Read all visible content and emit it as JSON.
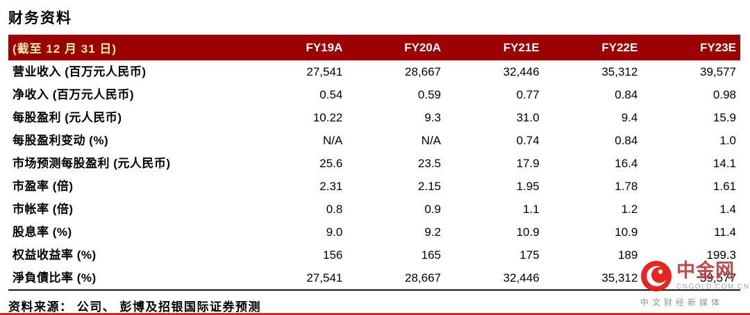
{
  "page_title": "财务资料",
  "table": {
    "header": {
      "label": "(截至 12 月 31 日)",
      "columns": [
        "FY19A",
        "FY20A",
        "FY21E",
        "FY22E",
        "FY23E"
      ]
    },
    "rows": [
      {
        "label": "营业收入 (百万元人民币)",
        "values": [
          "27,541",
          "28,667",
          "32,446",
          "35,312",
          "39,577"
        ]
      },
      {
        "label": "净收入 (百万元人民币)",
        "values": [
          "0.54",
          "0.59",
          "0.77",
          "0.84",
          "0.98"
        ]
      },
      {
        "label": "每股盈利 (元人民币)",
        "values": [
          "10.22",
          "9.3",
          "31.0",
          "9.4",
          "15.9"
        ]
      },
      {
        "label": "每股盈利变动 (%)",
        "values": [
          "N/A",
          "N/A",
          "0.74",
          "0.84",
          "1.0"
        ]
      },
      {
        "label": "市场预测每股盈利 (元人民币)",
        "values": [
          "25.6",
          "23.5",
          "17.9",
          "16.4",
          "14.1"
        ]
      },
      {
        "label": "市盈率 (倍)",
        "values": [
          "2.31",
          "2.15",
          "1.95",
          "1.78",
          "1.61"
        ]
      },
      {
        "label": "市帐率 (倍)",
        "values": [
          "0.8",
          "0.9",
          "1.1",
          "1.2",
          "1.4"
        ]
      },
      {
        "label": "股息率 (%)",
        "values": [
          "9.0",
          "9.2",
          "10.9",
          "10.9",
          "11.4"
        ]
      },
      {
        "label": "权益收益率 (%)",
        "values": [
          "156",
          "165",
          "175",
          "189",
          "199.3"
        ]
      },
      {
        "label": "淨負債比率 (%)",
        "values": [
          "27,541",
          "28,667",
          "32,446",
          "35,312",
          "39,577"
        ]
      }
    ]
  },
  "source_note": "资料来源： 公司、 彭博及招银国际证券预测",
  "watermark": {
    "brand": "中金网",
    "domain": "CNGOLD.COM.CN",
    "tagline": "中文财经新媒体"
  },
  "colors": {
    "header_bg": "#9c0202",
    "header_label_text": "#ffefad",
    "accent_red": "#ee1c25",
    "brand_red": "#c5393b"
  }
}
